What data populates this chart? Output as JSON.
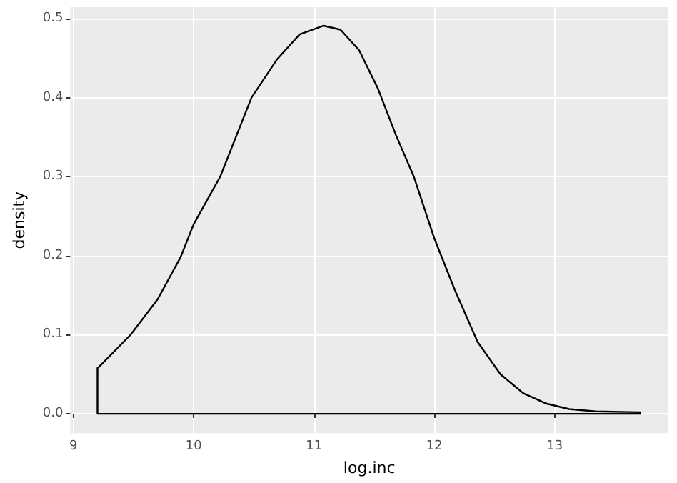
{
  "chart_data": {
    "type": "line",
    "xlabel": "log.inc",
    "ylabel": "density",
    "series": [
      {
        "color": "#000000",
        "x": [
          9.2,
          9.2,
          9.21,
          9.475,
          9.7,
          9.89,
          10.0,
          10.22,
          10.48,
          10.69,
          10.88,
          11.08,
          11.22,
          11.375,
          11.53,
          11.68,
          11.83,
          12.0,
          12.17,
          12.36,
          12.55,
          12.74,
          12.93,
          13.12,
          13.34,
          13.7,
          13.72
        ],
        "values": [
          0,
          0.058,
          0.059,
          0.1,
          0.145,
          0.198,
          0.24,
          0.3,
          0.4,
          0.448,
          0.48,
          0.491,
          0.486,
          0.46,
          0.412,
          0.353,
          0.3,
          0.222,
          0.157,
          0.091,
          0.05,
          0.026,
          0.013,
          0.006,
          0.003,
          0.002,
          0.002
        ]
      },
      {
        "color": "#000000",
        "x": [
          9.2,
          13.72
        ],
        "values": [
          0,
          0
        ]
      }
    ],
    "marker": "none",
    "line_style": "solid",
    "grid": true,
    "xlim": [
      8.974,
      13.946
    ],
    "xticks": [
      9,
      10,
      11,
      12,
      13
    ],
    "ylim": [
      -0.0245,
      0.5145
    ],
    "yticks": [
      {
        "value": 0,
        "label": "0.0"
      },
      {
        "value": 0.1,
        "label": "0.1"
      },
      {
        "value": 0.2,
        "label": "0.2"
      },
      {
        "value": 0.3,
        "label": "0.3"
      },
      {
        "value": 0.4,
        "label": "0.4"
      },
      {
        "value": 0.5,
        "label": "0.5"
      }
    ]
  }
}
